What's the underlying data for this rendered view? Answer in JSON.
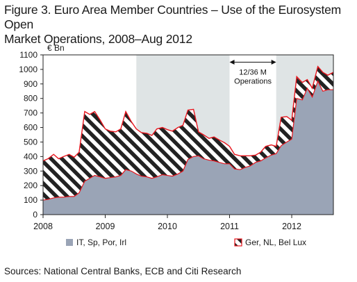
{
  "title_lines": [
    "Figure 3. Euro Area Member Countries – Use of the Eurosystem Open",
    "Market Operations, 2008–Aug 2012"
  ],
  "source": "Sources: National Central Banks, ECB and Citi Research",
  "colors": {
    "series_base": "#9aa4b6",
    "series_border": "#e8141c",
    "hatch": "#222222",
    "shade": "#dfe4e5",
    "frame": "#222222"
  },
  "chart_data": {
    "type": "area",
    "title": "Figure 3. Euro Area Member Countries – Use of the Eurosystem Open Market Operations, 2008–Aug 2012",
    "ylabel": "€ Bn",
    "xlabel": "",
    "ylim": [
      0,
      1100
    ],
    "yticks": [
      0,
      100,
      200,
      300,
      400,
      500,
      600,
      700,
      800,
      900,
      1000,
      1100
    ],
    "xlim": [
      2008.0,
      2012.67
    ],
    "xticks": [
      2008,
      2009,
      2010,
      2011,
      2012
    ],
    "grid": false,
    "legend_position": "bottom",
    "stacked": true,
    "shaded_periods": [
      [
        2009.5,
        2011.0
      ],
      [
        2011.75,
        2012.67
      ]
    ],
    "annotation": {
      "text_lines": [
        "12/36 M",
        "Operations"
      ],
      "span": [
        2011.0,
        2011.75
      ],
      "y": 1050
    },
    "x": [
      2008.0,
      2008.08,
      2008.17,
      2008.25,
      2008.33,
      2008.42,
      2008.5,
      2008.58,
      2008.67,
      2008.75,
      2008.83,
      2008.92,
      2009.0,
      2009.08,
      2009.17,
      2009.25,
      2009.33,
      2009.42,
      2009.5,
      2009.58,
      2009.67,
      2009.75,
      2009.83,
      2009.92,
      2010.0,
      2010.08,
      2010.17,
      2010.25,
      2010.33,
      2010.42,
      2010.5,
      2010.58,
      2010.67,
      2010.75,
      2010.83,
      2010.92,
      2011.0,
      2011.08,
      2011.17,
      2011.25,
      2011.33,
      2011.42,
      2011.5,
      2011.58,
      2011.67,
      2011.75,
      2011.83,
      2011.92,
      2012.0,
      2012.08,
      2012.17,
      2012.25,
      2012.33,
      2012.42,
      2012.5,
      2012.58,
      2012.67
    ],
    "series": [
      {
        "name": "IT, Sp, Por, Irl",
        "style": "solid",
        "values": [
          100,
          105,
          115,
          120,
          120,
          125,
          125,
          150,
          230,
          250,
          270,
          260,
          250,
          255,
          260,
          270,
          310,
          300,
          280,
          265,
          260,
          250,
          260,
          275,
          270,
          265,
          280,
          300,
          380,
          400,
          405,
          385,
          375,
          370,
          360,
          350,
          350,
          315,
          310,
          325,
          335,
          360,
          370,
          390,
          410,
          420,
          475,
          500,
          520,
          800,
          790,
          870,
          810,
          920,
          850,
          860,
          860
        ]
      },
      {
        "name": "Ger, NL, Bel Lux",
        "style": "hatched",
        "values": [
          270,
          280,
          300,
          265,
          280,
          290,
          270,
          280,
          480,
          440,
          440,
          390,
          340,
          320,
          310,
          320,
          400,
          340,
          310,
          300,
          300,
          295,
          330,
          325,
          315,
          310,
          320,
          315,
          340,
          325,
          165,
          165,
          150,
          165,
          155,
          145,
          120,
          100,
          95,
          80,
          70,
          50,
          60,
          80,
          70,
          50,
          195,
          175,
          130,
          150,
          120,
          60,
          60,
          100,
          130,
          100,
          120
        ]
      }
    ]
  }
}
